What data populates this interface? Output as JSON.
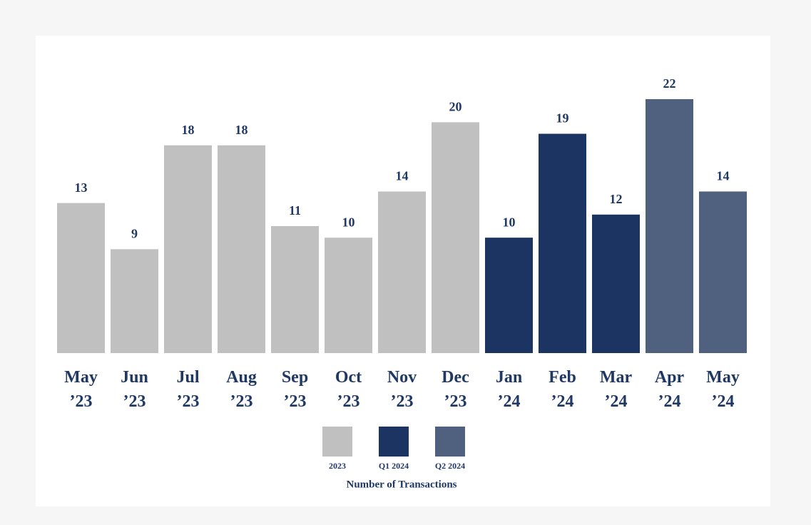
{
  "chart_data": {
    "type": "bar",
    "categories": [
      "May ’23",
      "Jun ’23",
      "Jul ’23",
      "Aug ’23",
      "Sep ’23",
      "Oct ’23",
      "Nov ’23",
      "Dec ’23",
      "Jan ’24",
      "Feb ’24",
      "Mar ’24",
      "Apr ’24",
      "May ’24"
    ],
    "series": [
      {
        "name": "2023",
        "color": "#c0c0c0",
        "values": [
          13,
          9,
          18,
          18,
          11,
          10,
          14,
          20,
          null,
          null,
          null,
          null,
          null
        ]
      },
      {
        "name": "Q1 2024",
        "color": "#1b3462",
        "values": [
          null,
          null,
          null,
          null,
          null,
          null,
          null,
          null,
          10,
          19,
          12,
          null,
          null
        ]
      },
      {
        "name": "Q2 2024",
        "color": "#50607f",
        "values": [
          null,
          null,
          null,
          null,
          null,
          null,
          null,
          null,
          null,
          null,
          null,
          22,
          14
        ]
      }
    ],
    "legend_title": "Number of Transactions",
    "ylim": [
      0,
      22
    ],
    "grid": false
  }
}
